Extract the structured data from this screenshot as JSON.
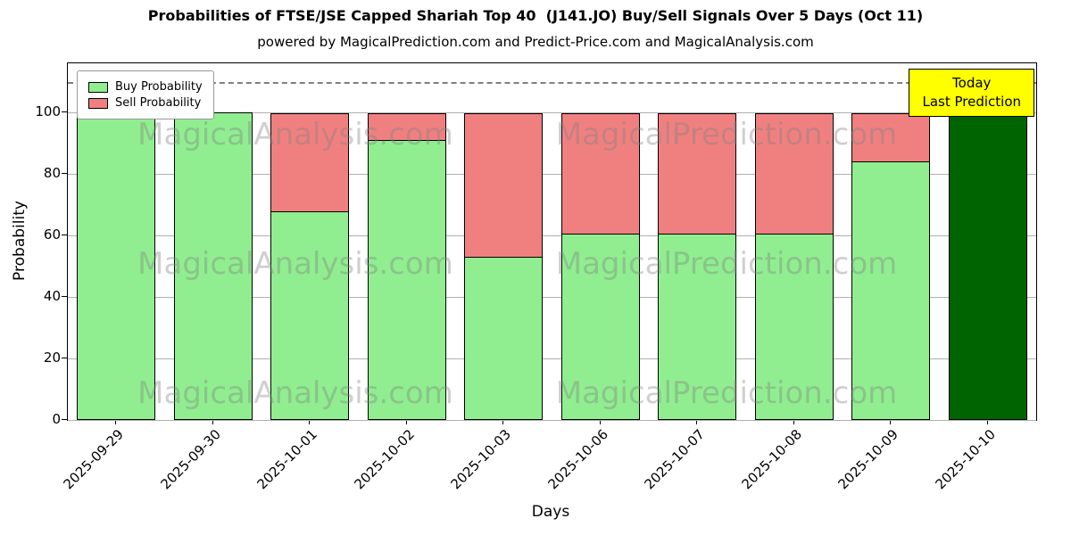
{
  "chart_data": {
    "type": "bar",
    "stacked": true,
    "title": "Probabilities of FTSE/JSE Capped Shariah Top 40  (J141.JO) Buy/Sell Signals Over 5 Days (Oct 11)",
    "subtitle": "powered by MagicalPrediction.com and Predict-Price.com and MagicalAnalysis.com",
    "xlabel": "Days",
    "ylabel": "Probability",
    "categories": [
      "2025-09-29",
      "2025-09-30",
      "2025-10-01",
      "2025-10-02",
      "2025-10-03",
      "2025-10-06",
      "2025-10-07",
      "2025-10-08",
      "2025-10-09",
      "2025-10-10"
    ],
    "series": [
      {
        "name": "Buy Probability",
        "values": [
          100,
          100,
          68,
          91,
          53,
          60.5,
          60.5,
          60.5,
          84,
          100
        ]
      },
      {
        "name": "Sell Probability",
        "values": [
          0,
          0,
          32,
          9,
          47,
          39.5,
          39.5,
          39.5,
          16,
          0
        ]
      }
    ],
    "ylim": [
      0,
      116
    ],
    "yticks": [
      0,
      20,
      40,
      60,
      80,
      100
    ],
    "dashed_line_y": 110,
    "today_index": 9,
    "grid": "horizontal",
    "legend_position": "upper left",
    "colors": {
      "buy": "#90ee90",
      "sell": "#f08080",
      "today": "#006400",
      "dashed": "#7f7f7f"
    }
  },
  "annotation": {
    "line1": "Today",
    "line2": "Last Prediction",
    "bg": "#ffff00"
  },
  "watermarks": [
    "MagicalAnalysis.com",
    "MagicalPrediction.com"
  ]
}
